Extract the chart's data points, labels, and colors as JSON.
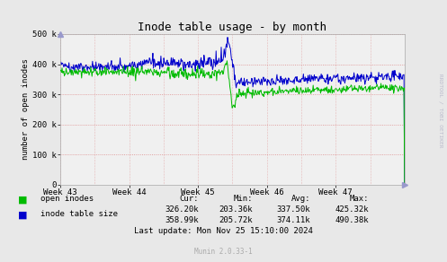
{
  "title": "Inode table usage - by month",
  "ylabel": "number of open inodes",
  "xlabel_ticks": [
    "Week 43",
    "Week 44",
    "Week 45",
    "Week 46",
    "Week 47"
  ],
  "ylim": [
    0,
    500000
  ],
  "ytick_labels": [
    "0",
    "100 k",
    "200 k",
    "300 k",
    "400 k",
    "500 k"
  ],
  "ytick_vals": [
    0,
    100000,
    200000,
    300000,
    400000,
    500000
  ],
  "bg_color": "#e8e8e8",
  "plot_bg_color": "#f0f0f0",
  "grid_color": "#ffaaaa",
  "line_green": "#00bb00",
  "line_blue": "#0000cc",
  "legend": [
    {
      "label": "open inodes",
      "color": "#00bb00"
    },
    {
      "label": "inode table size",
      "color": "#0000cc"
    }
  ],
  "footer_stats": [
    {
      "cur": "326.20k",
      "min": "203.36k",
      "avg": "337.50k",
      "max": "425.32k"
    },
    {
      "cur": "358.99k",
      "min": "205.72k",
      "avg": "374.11k",
      "max": "490.38k"
    }
  ],
  "last_update": "Last update: Mon Nov 25 15:10:00 2024",
  "munin_version": "Munin 2.0.33-1",
  "watermark": "RRDTOOL / TOBI OETIKER"
}
